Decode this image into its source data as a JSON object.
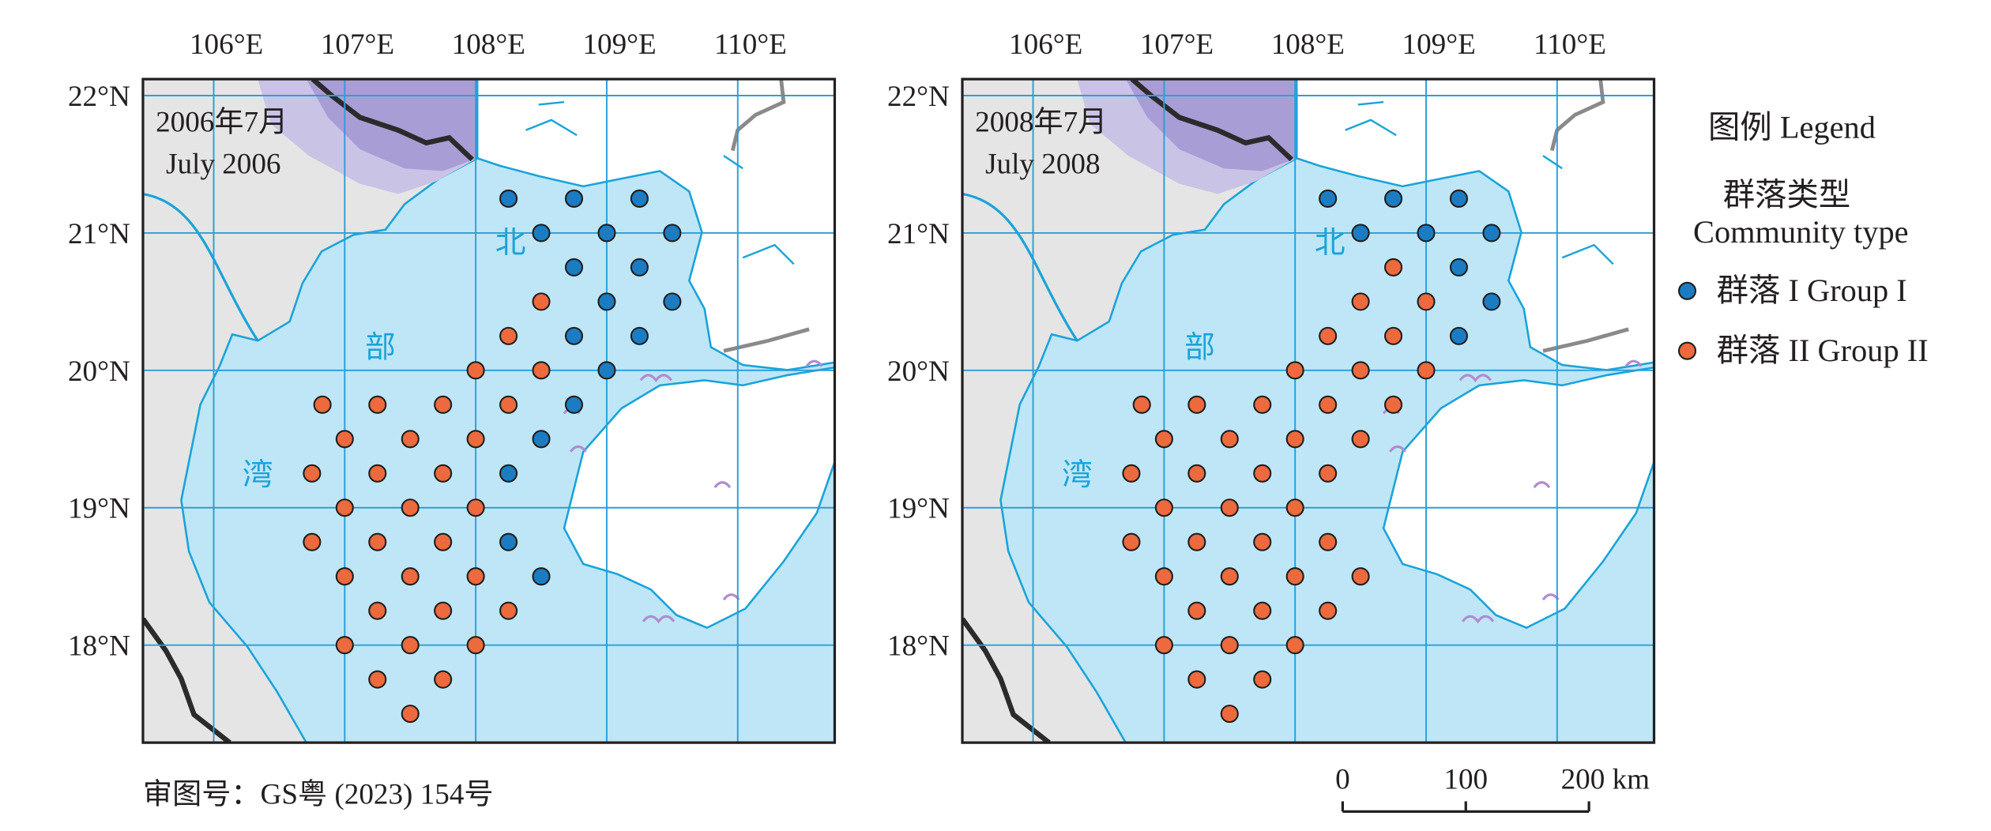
{
  "panels": [
    {
      "title": "2006年7月",
      "subtitle": "July 2006",
      "xlim": [
        105.46,
        110.74
      ],
      "ylim": [
        17.29,
        22.12
      ],
      "xticks": [
        {
          "value": 106,
          "label": "106°E"
        },
        {
          "value": 107,
          "label": "107°E"
        },
        {
          "value": 108,
          "label": "108°E"
        },
        {
          "value": 109,
          "label": "109°E"
        },
        {
          "value": 110,
          "label": "110°E"
        }
      ],
      "yticks": [
        {
          "value": 22,
          "label": "22°N"
        },
        {
          "value": 21,
          "label": "21°N"
        },
        {
          "value": 20,
          "label": "20°N"
        },
        {
          "value": 19,
          "label": "19°N"
        },
        {
          "value": 18,
          "label": "18°N"
        }
      ],
      "groups": [
        {
          "lon": [
            108.25,
            108.75,
            109.25,
            108.5,
            109,
            109.5,
            108.75,
            109.25,
            109,
            109.5,
            108.75,
            109.25,
            109,
            108.75,
            108.5,
            108.25,
            108.25,
            108.5
          ],
          "lat": [
            21.25,
            21.25,
            21.25,
            21,
            21,
            21,
            20.75,
            20.75,
            20.5,
            20.5,
            20.25,
            20.25,
            20,
            19.75,
            19.5,
            19.25,
            18.75,
            18.5
          ]
        },
        {
          "lon": [
            108.5,
            108.25,
            108,
            108.5,
            106.83,
            107.25,
            107.75,
            108.25,
            107,
            107.5,
            108,
            106.75,
            107.25,
            107.75,
            107,
            107.5,
            108,
            106.75,
            107.25,
            107.75,
            107,
            107.5,
            108,
            107.25,
            107.75,
            108.25,
            107,
            107.5,
            108,
            107.25,
            107.75,
            107.5
          ],
          "lat": [
            20.5,
            20.25,
            20,
            20,
            19.75,
            19.75,
            19.75,
            19.75,
            19.5,
            19.5,
            19.5,
            19.25,
            19.25,
            19.25,
            19,
            19,
            19,
            18.75,
            18.75,
            18.75,
            18.5,
            18.5,
            18.5,
            18.25,
            18.25,
            18.25,
            18,
            18,
            18,
            17.75,
            17.75,
            17.5
          ]
        }
      ]
    },
    {
      "title": "2008年7月",
      "subtitle": "July 2008",
      "xlim": [
        105.46,
        110.74
      ],
      "ylim": [
        17.29,
        22.12
      ],
      "xticks": [
        {
          "value": 106,
          "label": "106°E"
        },
        {
          "value": 107,
          "label": "107°E"
        },
        {
          "value": 108,
          "label": "108°E"
        },
        {
          "value": 109,
          "label": "109°E"
        },
        {
          "value": 110,
          "label": "110°E"
        }
      ],
      "yticks": [
        {
          "value": 22,
          "label": "22°N"
        },
        {
          "value": 21,
          "label": "21°N"
        },
        {
          "value": 20,
          "label": "20°N"
        },
        {
          "value": 19,
          "label": "19°N"
        },
        {
          "value": 18,
          "label": "18°N"
        }
      ],
      "groups": [
        {
          "lon": [
            108.25,
            108.75,
            109.25,
            108.5,
            109,
            109.5,
            109.25,
            109.5,
            109.25
          ],
          "lat": [
            21.25,
            21.25,
            21.25,
            21,
            21,
            21,
            20.75,
            20.5,
            20.25
          ]
        },
        {
          "lon": [
            108.75,
            108.5,
            109,
            108.25,
            108.75,
            108,
            108.5,
            109,
            106.83,
            107.25,
            107.75,
            108.25,
            108.75,
            107,
            107.5,
            108,
            108.5,
            106.75,
            107.25,
            107.75,
            108.25,
            107,
            107.5,
            108,
            106.75,
            107.25,
            107.75,
            108.25,
            107,
            107.5,
            108,
            108.5,
            107.25,
            107.75,
            108.25,
            107,
            107.5,
            108,
            107.25,
            107.75,
            107.5
          ],
          "lat": [
            20.75,
            20.5,
            20.5,
            20.25,
            20.25,
            20,
            20,
            20,
            19.75,
            19.75,
            19.75,
            19.75,
            19.75,
            19.5,
            19.5,
            19.5,
            19.5,
            19.25,
            19.25,
            19.25,
            19.25,
            19,
            19,
            19,
            18.75,
            18.75,
            18.75,
            18.75,
            18.5,
            18.5,
            18.5,
            18.5,
            18.25,
            18.25,
            18.25,
            18,
            18,
            18,
            17.75,
            17.75,
            17.5
          ]
        }
      ]
    }
  ],
  "sea_labels": [
    "北",
    "部",
    "湾"
  ],
  "legend": {
    "title": "图例 Legend",
    "heading": "群落类型",
    "subheading": "Community type",
    "items": [
      {
        "label": "群落 I Group I",
        "color": "#1b7cc2"
      },
      {
        "label": "群落 II Group II",
        "color": "#ec6a3d"
      }
    ]
  },
  "footer": "审图号：GS粤 (2023) 154号",
  "scale_bar": {
    "ticks": [
      0,
      100,
      {
        "value": 200,
        "label": "200 km"
      }
    ]
  }
}
